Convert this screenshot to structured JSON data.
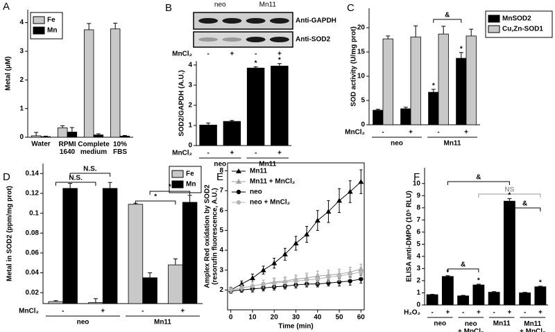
{
  "chart_data": [
    {
      "type": "bar",
      "panel_label": "A",
      "ylabel": "Metal (μM)",
      "categories": [
        "Water",
        "RPMI\n1640",
        "Complete\nmedium",
        "10%\nFBS"
      ],
      "series": [
        {
          "name": "Fe",
          "color": "#c8c8c8",
          "values": [
            0.05,
            0.33,
            3.75,
            3.78
          ],
          "errors": [
            0.12,
            0.07,
            0.22,
            0.2
          ]
        },
        {
          "name": "Mn",
          "color": "#000000",
          "values": [
            0.02,
            0.18,
            0.08,
            0.04
          ],
          "errors": [
            0.02,
            0.16,
            0.04,
            0.02
          ]
        }
      ],
      "ylim": [
        0,
        4.45
      ],
      "yticks": [
        0,
        1,
        2,
        3,
        4
      ],
      "legend": "upper left"
    },
    {
      "type": "bar",
      "panel_label": "B",
      "blot": {
        "lanes": [
          "neo",
          "Mn11"
        ],
        "rows": [
          "Anti-GAPDH",
          "Anti-SOD2"
        ],
        "treatment": "MnCl₂",
        "doses": [
          "-",
          "+",
          "-",
          "+"
        ]
      },
      "ylabel": "SOD2/GAPDH (A.U.)",
      "categories": [
        "-",
        "+",
        "-",
        "+"
      ],
      "treatment": "MnCl₂",
      "groups": [
        "neo",
        "Mn11"
      ],
      "values": [
        1.02,
        1.2,
        3.85,
        3.95
      ],
      "errors": [
        0.1,
        0.05,
        0.06,
        0.12
      ],
      "color": "#000000",
      "ylim": [
        0,
        4.2
      ],
      "yticks": [
        0,
        1,
        2,
        3,
        4
      ],
      "annotations": [
        "*",
        "*"
      ]
    },
    {
      "type": "bar",
      "panel_label": "C",
      "ylabel": "SOD activity (U/mg prot)",
      "categories": [
        "-",
        "+",
        "-",
        "+"
      ],
      "treatment": "MnCl₂",
      "groups": [
        "neo",
        "Mn11"
      ],
      "series": [
        {
          "name": "MnSOD2",
          "color": "#000000",
          "values": [
            3.0,
            3.3,
            6.7,
            13.7
          ],
          "errors": [
            0.2,
            0.3,
            0.6,
            1.2
          ]
        },
        {
          "name": "Cu,Zn-SOD1",
          "color": "#c8c8c8",
          "values": [
            17.7,
            18.1,
            18.7,
            18.3
          ],
          "errors": [
            0.6,
            2.3,
            1.6,
            1.4
          ]
        }
      ],
      "ylim": [
        0,
        24
      ],
      "yticks": [
        0,
        5,
        10,
        15,
        20
      ],
      "legend": "right",
      "annotations": [
        "&",
        "*",
        "*"
      ]
    },
    {
      "type": "bar",
      "panel_label": "D",
      "ylabel": "Metal in SOD2 (ppm/mg prot)",
      "categories": [
        "-",
        "+",
        "-",
        "+"
      ],
      "treatment": "MnCl₂",
      "groups": [
        "neo",
        "Mn11"
      ],
      "series": [
        {
          "name": "Fe",
          "color": "#c8c8c8",
          "values": [
            0.011,
            0.01,
            0.109,
            0.048
          ],
          "errors": [
            0.001,
            0.004,
            0.001,
            0.006
          ]
        },
        {
          "name": "Mn",
          "color": "#000000",
          "values": [
            0.125,
            0.125,
            0.035,
            0.111
          ],
          "errors": [
            0.005,
            0.006,
            0.005,
            0.007
          ]
        }
      ],
      "ylim": [
        0.009,
        0.15
      ],
      "yticks": [
        0.02,
        0.04,
        0.06,
        0.08,
        0.1,
        0.12,
        0.14
      ],
      "legend": "upper right",
      "annotations": [
        "N.S.",
        "N.S.",
        "*",
        "*"
      ]
    },
    {
      "type": "line",
      "panel_label": "E",
      "ylabel": "Amplex Red oxidation by SOD2\n(resorufin fluorescence, A.U.)",
      "xlabel": "Time (min)",
      "x": [
        0,
        5,
        10,
        15,
        20,
        25,
        30,
        35,
        40,
        45,
        50,
        55,
        60
      ],
      "series": [
        {
          "name": "Mn11",
          "color": "#000000",
          "marker": "triangle",
          "values": [
            2.0,
            2.3,
            2.6,
            3.0,
            3.35,
            3.8,
            4.35,
            4.8,
            5.5,
            5.95,
            6.5,
            6.95,
            7.45
          ],
          "errors": [
            0.12,
            0.15,
            0.2,
            0.2,
            0.25,
            0.3,
            0.35,
            0.4,
            0.5,
            0.55,
            0.6,
            0.55,
            0.6
          ]
        },
        {
          "name": "Mn11 + MnCl₂",
          "color": "#a0a0a0",
          "marker": "triangle",
          "values": [
            2.0,
            2.1,
            2.2,
            2.3,
            2.4,
            2.45,
            2.55,
            2.6,
            2.7,
            2.75,
            2.8,
            2.9,
            3.05
          ],
          "errors": [
            0.15,
            0.15,
            0.2,
            0.2,
            0.2,
            0.2,
            0.2,
            0.25,
            0.25,
            0.25,
            0.25,
            0.25,
            0.25
          ]
        },
        {
          "name": "neo",
          "color": "#000000",
          "marker": "circle",
          "values": [
            1.95,
            2.0,
            2.05,
            2.1,
            2.15,
            2.2,
            2.25,
            2.3,
            2.3,
            2.35,
            2.4,
            2.45,
            2.55
          ],
          "errors": [
            0.12,
            0.12,
            0.15,
            0.15,
            0.15,
            0.15,
            0.15,
            0.15,
            0.15,
            0.15,
            0.2,
            0.2,
            0.2
          ]
        },
        {
          "name": "neo + MnCl₂",
          "color": "#b4b4b4",
          "marker": "circle",
          "values": [
            2.0,
            2.1,
            2.2,
            2.3,
            2.35,
            2.4,
            2.45,
            2.5,
            2.55,
            2.65,
            2.7,
            2.8,
            2.9
          ],
          "errors": [
            0.15,
            0.15,
            0.2,
            0.2,
            0.2,
            0.2,
            0.25,
            0.25,
            0.25,
            0.25,
            0.25,
            0.25,
            0.25
          ]
        }
      ],
      "xlim": [
        -1.5,
        61.5
      ],
      "xticks": [
        0,
        10,
        20,
        30,
        40,
        50,
        60
      ],
      "ylim": [
        1,
        8.4
      ],
      "yticks": [
        2,
        3,
        4,
        5,
        6,
        7,
        8
      ],
      "legend": "upper left"
    },
    {
      "type": "bar",
      "panel_label": "F",
      "ylabel": "ELISA anti-DMPO (10⁵ RLU)",
      "categories": [
        "-",
        "+",
        "-",
        "+",
        "-",
        "+",
        "-",
        "+"
      ],
      "treatment": "H₂O₂",
      "groups": [
        "neo",
        "neo\n+ MnCl₂",
        "Mn11",
        "Mn11\n+ MnCl₂"
      ],
      "values": [
        0.85,
        2.35,
        0.75,
        1.65,
        1.05,
        8.55,
        1.0,
        1.5
      ],
      "errors": [
        0.03,
        0.06,
        0.04,
        0.06,
        0.05,
        0.2,
        0.04,
        0.05
      ],
      "color": "#000000",
      "ylim": [
        0,
        11.3
      ],
      "yticks": [
        0,
        1,
        2,
        3,
        4,
        5,
        6,
        7,
        8,
        9,
        10
      ],
      "annotations": [
        "&",
        "NS",
        "&",
        "&",
        "*",
        "*",
        "*",
        "*"
      ]
    }
  ]
}
